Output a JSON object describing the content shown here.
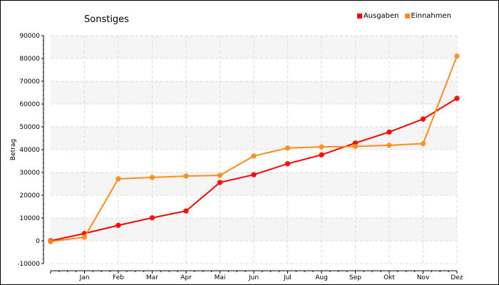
{
  "chart_data": {
    "type": "line",
    "title": "Sonstiges",
    "xlabel": "",
    "ylabel": "Betrag",
    "categories": [
      "",
      "Jan",
      "Feb",
      "Mar",
      "Apr",
      "Mai",
      "Jun",
      "Jul",
      "Aug",
      "Sep",
      "Okt",
      "Nov",
      "Dez"
    ],
    "ylim": [
      -10000,
      90000
    ],
    "yticks": [
      -10000,
      0,
      10000,
      20000,
      30000,
      40000,
      50000,
      60000,
      70000,
      80000,
      90000
    ],
    "grid": true,
    "legend_position": "top-right",
    "series": [
      {
        "name": "Ausgaben",
        "color": "#ff0000",
        "values": [
          0,
          3200,
          6800,
          10100,
          13100,
          25600,
          29000,
          33800,
          37700,
          42900,
          47700,
          53400,
          62500
        ]
      },
      {
        "name": "Einnahmen",
        "color": "#ff8c1a",
        "values": [
          -300,
          1600,
          27200,
          27800,
          28400,
          28700,
          37200,
          40700,
          41200,
          41400,
          41900,
          42600,
          81000
        ]
      }
    ]
  }
}
